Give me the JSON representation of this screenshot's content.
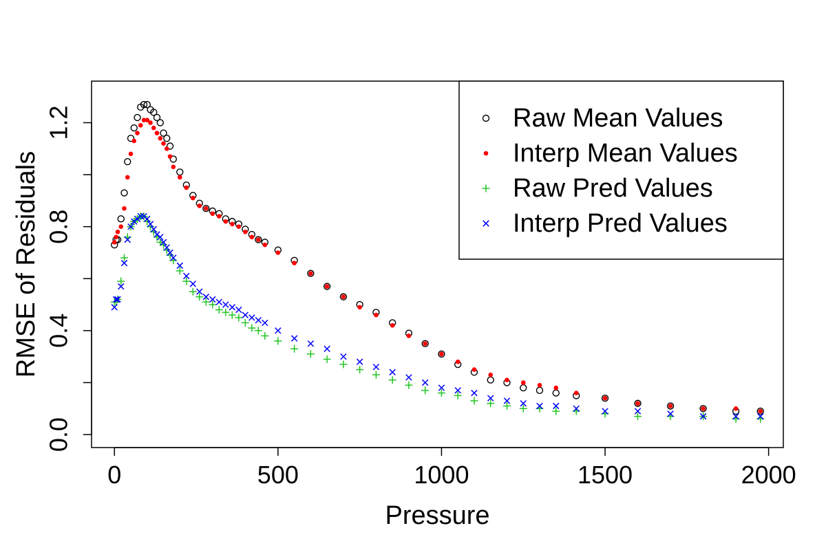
{
  "chart_data": {
    "type": "scatter",
    "title": "",
    "xlabel": "Pressure",
    "ylabel": "RMSE of Residuals",
    "xlim": [
      -70,
      2045
    ],
    "ylim": [
      -0.05,
      1.36
    ],
    "x_ticks": [
      0,
      500,
      1000,
      1500,
      2000
    ],
    "x_tick_labels": [
      "0",
      "500",
      "1000",
      "1500",
      "2000"
    ],
    "y_ticks": [
      0.0,
      0.4,
      0.8,
      1.2
    ],
    "y_tick_labels": [
      "0.0",
      "0.4",
      "0.8",
      "1.2"
    ],
    "y_minor_ticks": [
      0.2,
      0.6,
      1.0
    ],
    "grid": false,
    "legend_position": "top-right",
    "series": [
      {
        "name": "Raw Mean Values",
        "marker": "open-circle",
        "color": "#000000",
        "x": [
          0,
          5,
          10,
          20,
          30,
          40,
          50,
          60,
          70,
          80,
          90,
          100,
          110,
          120,
          130,
          140,
          150,
          160,
          170,
          180,
          200,
          220,
          240,
          260,
          280,
          300,
          320,
          340,
          360,
          380,
          400,
          420,
          440,
          460,
          500,
          550,
          600,
          650,
          700,
          750,
          800,
          850,
          900,
          950,
          1000,
          1050,
          1100,
          1150,
          1200,
          1250,
          1300,
          1350,
          1412,
          1500,
          1600,
          1700,
          1800,
          1900,
          1975
        ],
        "y": [
          0.73,
          0.75,
          0.75,
          0.83,
          0.93,
          1.05,
          1.14,
          1.18,
          1.22,
          1.26,
          1.27,
          1.27,
          1.25,
          1.24,
          1.22,
          1.2,
          1.16,
          1.14,
          1.11,
          1.06,
          1.01,
          0.96,
          0.92,
          0.89,
          0.87,
          0.86,
          0.85,
          0.83,
          0.82,
          0.81,
          0.79,
          0.77,
          0.75,
          0.74,
          0.71,
          0.67,
          0.62,
          0.57,
          0.53,
          0.5,
          0.47,
          0.43,
          0.39,
          0.35,
          0.31,
          0.27,
          0.24,
          0.21,
          0.2,
          0.18,
          0.17,
          0.16,
          0.15,
          0.14,
          0.12,
          0.11,
          0.1,
          0.09,
          0.09
        ]
      },
      {
        "name": "Interp Mean Values",
        "marker": "filled-dot",
        "color": "#ff0000",
        "x": [
          0,
          5,
          10,
          20,
          30,
          40,
          50,
          60,
          70,
          80,
          90,
          100,
          110,
          120,
          130,
          140,
          150,
          160,
          170,
          180,
          200,
          220,
          240,
          260,
          280,
          300,
          320,
          340,
          360,
          380,
          400,
          420,
          440,
          460,
          500,
          550,
          600,
          650,
          700,
          750,
          800,
          850,
          900,
          950,
          1000,
          1050,
          1100,
          1150,
          1200,
          1250,
          1300,
          1350,
          1412,
          1500,
          1600,
          1700,
          1800,
          1900,
          1975
        ],
        "y": [
          0.74,
          0.76,
          0.78,
          0.8,
          0.87,
          0.99,
          1.08,
          1.13,
          1.16,
          1.19,
          1.21,
          1.21,
          1.2,
          1.18,
          1.16,
          1.14,
          1.12,
          1.1,
          1.07,
          1.03,
          0.99,
          0.95,
          0.91,
          0.88,
          0.87,
          0.85,
          0.84,
          0.82,
          0.81,
          0.8,
          0.78,
          0.76,
          0.75,
          0.73,
          0.7,
          0.66,
          0.62,
          0.57,
          0.53,
          0.49,
          0.46,
          0.42,
          0.38,
          0.35,
          0.31,
          0.28,
          0.25,
          0.23,
          0.21,
          0.2,
          0.19,
          0.18,
          0.16,
          0.14,
          0.12,
          0.11,
          0.1,
          0.1,
          0.09
        ]
      },
      {
        "name": "Raw Pred Values",
        "marker": "plus",
        "color": "#22c322",
        "x": [
          0,
          5,
          10,
          20,
          30,
          40,
          50,
          60,
          70,
          80,
          90,
          100,
          110,
          120,
          130,
          140,
          150,
          160,
          170,
          180,
          200,
          220,
          240,
          260,
          280,
          300,
          320,
          340,
          360,
          380,
          400,
          420,
          440,
          460,
          500,
          550,
          600,
          650,
          700,
          750,
          800,
          850,
          900,
          950,
          1000,
          1050,
          1100,
          1150,
          1200,
          1250,
          1300,
          1350,
          1412,
          1500,
          1600,
          1700,
          1800,
          1900,
          1975
        ],
        "y": [
          0.51,
          0.51,
          0.52,
          0.59,
          0.68,
          0.76,
          0.8,
          0.82,
          0.83,
          0.84,
          0.84,
          0.82,
          0.8,
          0.78,
          0.76,
          0.74,
          0.73,
          0.71,
          0.69,
          0.67,
          0.63,
          0.59,
          0.55,
          0.53,
          0.51,
          0.5,
          0.48,
          0.47,
          0.46,
          0.45,
          0.43,
          0.41,
          0.4,
          0.38,
          0.36,
          0.33,
          0.31,
          0.29,
          0.27,
          0.25,
          0.23,
          0.21,
          0.19,
          0.17,
          0.16,
          0.15,
          0.13,
          0.12,
          0.11,
          0.1,
          0.1,
          0.09,
          0.09,
          0.08,
          0.07,
          0.07,
          0.07,
          0.06,
          0.06
        ]
      },
      {
        "name": "Interp Pred Values",
        "marker": "cross",
        "color": "#0000ff",
        "x": [
          0,
          5,
          10,
          20,
          30,
          40,
          50,
          60,
          70,
          80,
          90,
          100,
          110,
          120,
          130,
          140,
          150,
          160,
          170,
          180,
          200,
          220,
          240,
          260,
          280,
          300,
          320,
          340,
          360,
          380,
          400,
          420,
          440,
          460,
          500,
          550,
          600,
          650,
          700,
          750,
          800,
          850,
          900,
          950,
          1000,
          1050,
          1100,
          1150,
          1200,
          1250,
          1300,
          1350,
          1412,
          1500,
          1600,
          1700,
          1800,
          1900,
          1975
        ],
        "y": [
          0.49,
          0.52,
          0.52,
          0.57,
          0.66,
          0.75,
          0.8,
          0.82,
          0.83,
          0.84,
          0.84,
          0.83,
          0.81,
          0.79,
          0.77,
          0.76,
          0.74,
          0.72,
          0.7,
          0.68,
          0.65,
          0.61,
          0.58,
          0.55,
          0.53,
          0.52,
          0.51,
          0.5,
          0.49,
          0.48,
          0.46,
          0.45,
          0.44,
          0.43,
          0.4,
          0.37,
          0.35,
          0.33,
          0.3,
          0.28,
          0.26,
          0.24,
          0.22,
          0.2,
          0.18,
          0.17,
          0.16,
          0.14,
          0.13,
          0.12,
          0.11,
          0.11,
          0.1,
          0.09,
          0.09,
          0.08,
          0.07,
          0.07,
          0.07
        ]
      }
    ]
  }
}
